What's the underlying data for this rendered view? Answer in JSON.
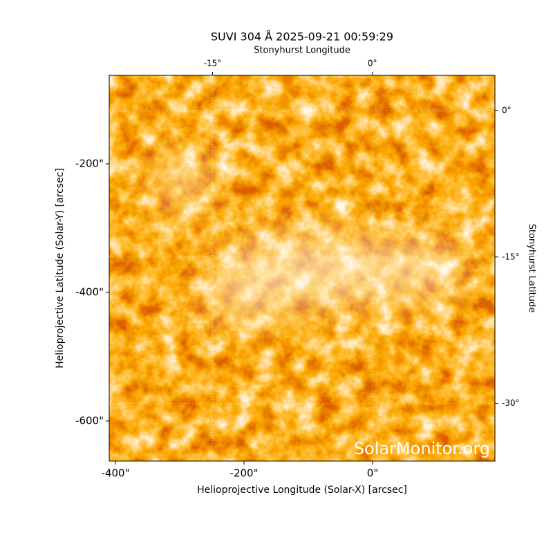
{
  "chart_data": {
    "type": "image",
    "title": "SUVI 304 Å 2025-09-21 00:59:29",
    "watermark": "SolarMonitor.org",
    "x_label": "Helioprojective Longitude (Solar-X) [arcsec]",
    "y_label": "Helioprojective Latitude (Solar-Y) [arcsec]",
    "x2_label": "Stonyhurst Longitude",
    "y2_label": "Stonyhurst Latitude",
    "xlim": [
      -409.7,
      190.3
    ],
    "xticks": [
      {
        "value": -400,
        "label": "-400\""
      },
      {
        "value": -200,
        "label": "-200\""
      },
      {
        "value": 0,
        "label": "0\""
      }
    ],
    "ylim": [
      -662.4,
      -62.4
    ],
    "yticks": [
      {
        "value": -600,
        "label": "-600\""
      },
      {
        "value": -400,
        "label": "-400\""
      },
      {
        "value": -200,
        "label": "-200\""
      }
    ],
    "x2lim": [
      -24.7,
      11.5
    ],
    "x2ticks": [
      {
        "value": -15,
        "label": "-15°"
      },
      {
        "value": 0,
        "label": "0°"
      }
    ],
    "y2lim": [
      -35.9,
      3.6
    ],
    "y2ticks": [
      {
        "value": 0,
        "label": "0°"
      },
      {
        "value": -15,
        "label": "-15°"
      },
      {
        "value": -30,
        "label": "-30°"
      }
    ],
    "grid": true
  }
}
